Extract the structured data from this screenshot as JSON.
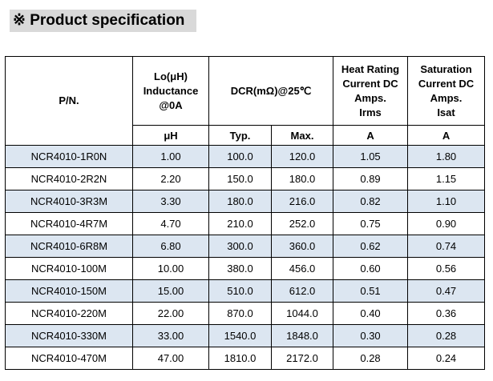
{
  "title": "※ Product specification",
  "table": {
    "header": [
      {
        "lines": [
          "P/N."
        ]
      },
      {
        "lines": [
          "Lo(μH)",
          "Inductance",
          "@0A"
        ]
      },
      {
        "lines": [
          "DCR(mΩ)@25℃"
        ]
      },
      {
        "lines": [
          "Heat Rating",
          "Current DC",
          "Amps.",
          "Irms"
        ]
      },
      {
        "lines": [
          "Saturation",
          "Current DC",
          "Amps.",
          "Isat"
        ]
      }
    ],
    "units": [
      "μH",
      "Typ.",
      "Max.",
      "A",
      "A"
    ],
    "rows": [
      [
        "NCR4010-1R0N",
        "1.00",
        "100.0",
        "120.0",
        "1.05",
        "1.80"
      ],
      [
        "NCR4010-2R2N",
        "2.20",
        "150.0",
        "180.0",
        "0.89",
        "1.15"
      ],
      [
        "NCR4010-3R3M",
        "3.30",
        "180.0",
        "216.0",
        "0.82",
        "1.10"
      ],
      [
        "NCR4010-4R7M",
        "4.70",
        "210.0",
        "252.0",
        "0.75",
        "0.90"
      ],
      [
        "NCR4010-6R8M",
        "6.80",
        "300.0",
        "360.0",
        "0.62",
        "0.74"
      ],
      [
        "NCR4010-100M",
        "10.00",
        "380.0",
        "456.0",
        "0.60",
        "0.56"
      ],
      [
        "NCR4010-150M",
        "15.00",
        "510.0",
        "612.0",
        "0.51",
        "0.47"
      ],
      [
        "NCR4010-220M",
        "22.00",
        "870.0",
        "1044.0",
        "0.40",
        "0.36"
      ],
      [
        "NCR4010-330M",
        "33.00",
        "1540.0",
        "1848.0",
        "0.30",
        "0.28"
      ],
      [
        "NCR4010-470M",
        "47.00",
        "1810.0",
        "2172.0",
        "0.28",
        "0.24"
      ]
    ]
  }
}
